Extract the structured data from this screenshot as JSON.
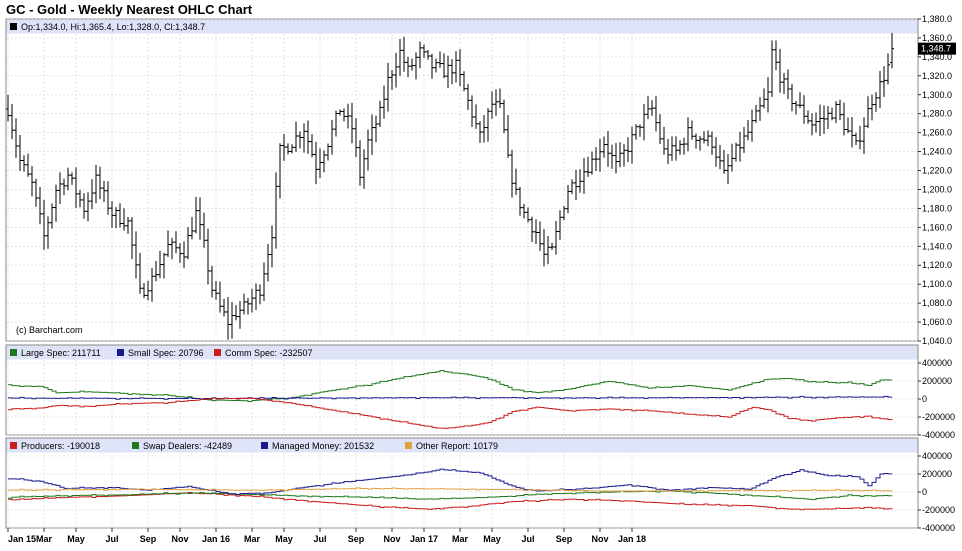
{
  "title": "GC - Gold - Weekly Nearest OHLC Chart",
  "colors": {
    "legend_band": "#dfe3f7",
    "grid": "#d4d4d4",
    "price_bar": "#000000",
    "large_spec": "#1f7a1f",
    "small_spec": "#1a1a8c",
    "comm_spec": "#c81e1e",
    "producers": "#c81e1e",
    "swap_dealers": "#1f7a1f",
    "managed_money": "#1a1a8c",
    "other_report": "#e0a040",
    "last_price_box": "#000000"
  },
  "chart_data": [
    {
      "type": "ohlc",
      "panel": "price",
      "legend": "Op:1,334.0, Hi:1,365.4, Lo:1,328.0, Cl:1,348.7",
      "watermark": "(c) Barchart.com",
      "last_price_label": "1,348.7",
      "last_price": 1348.7,
      "ylim": [
        1040,
        1380
      ],
      "yticks": [
        "1,380.0",
        "1,360.0",
        "1,340.0",
        "1,320.0",
        "1,300.0",
        "1,280.0",
        "1,260.0",
        "1,240.0",
        "1,220.0",
        "1,200.0",
        "1,180.0",
        "1,160.0",
        "1,140.0",
        "1,120.0",
        "1,100.0",
        "1,080.0",
        "1,060.0",
        "1,040.0"
      ],
      "ytick_values": [
        1380,
        1360,
        1340,
        1320,
        1300,
        1280,
        1260,
        1240,
        1220,
        1200,
        1180,
        1160,
        1140,
        1120,
        1100,
        1080,
        1060,
        1040
      ],
      "close_anchors": [
        [
          0,
          1285
        ],
        [
          3,
          1230
        ],
        [
          6,
          1205
        ],
        [
          9,
          1150
        ],
        [
          12,
          1200
        ],
        [
          15,
          1215
        ],
        [
          19,
          1180
        ],
        [
          22,
          1210
        ],
        [
          26,
          1175
        ],
        [
          30,
          1165
        ],
        [
          33,
          1090
        ],
        [
          36,
          1105
        ],
        [
          40,
          1140
        ],
        [
          44,
          1135
        ],
        [
          47,
          1175
        ],
        [
          49,
          1140
        ],
        [
          51,
          1095
        ],
        [
          53,
          1075
        ],
        [
          55,
          1060
        ],
        [
          57,
          1070
        ],
        [
          59,
          1075
        ],
        [
          61,
          1085
        ],
        [
          63,
          1095
        ],
        [
          66,
          1155
        ],
        [
          68,
          1240
        ],
        [
          71,
          1250
        ],
        [
          74,
          1265
        ],
        [
          77,
          1225
        ],
        [
          80,
          1250
        ],
        [
          83,
          1285
        ],
        [
          86,
          1265
        ],
        [
          88,
          1215
        ],
        [
          90,
          1250
        ],
        [
          93,
          1280
        ],
        [
          95,
          1315
        ],
        [
          97,
          1335
        ],
        [
          98,
          1345
        ],
        [
          100,
          1325
        ],
        [
          103,
          1345
        ],
        [
          106,
          1330
        ],
        [
          109,
          1325
        ],
        [
          112,
          1330
        ],
        [
          114,
          1305
        ],
        [
          116,
          1280
        ],
        [
          118,
          1255
        ],
        [
          121,
          1290
        ],
        [
          123,
          1285
        ],
        [
          124,
          1260
        ],
        [
          125,
          1230
        ],
        [
          127,
          1195
        ],
        [
          129,
          1175
        ],
        [
          132,
          1155
        ],
        [
          134,
          1130
        ],
        [
          136,
          1135
        ],
        [
          138,
          1170
        ],
        [
          140,
          1200
        ],
        [
          143,
          1215
        ],
        [
          146,
          1230
        ],
        [
          149,
          1250
        ],
        [
          152,
          1225
        ],
        [
          155,
          1245
        ],
        [
          158,
          1270
        ],
        [
          161,
          1285
        ],
        [
          164,
          1240
        ],
        [
          167,
          1240
        ],
        [
          170,
          1260
        ],
        [
          173,
          1255
        ],
        [
          176,
          1250
        ],
        [
          179,
          1215
        ],
        [
          182,
          1240
        ],
        [
          185,
          1260
        ],
        [
          188,
          1285
        ],
        [
          190,
          1300
        ],
        [
          191,
          1345
        ],
        [
          193,
          1320
        ],
        [
          195,
          1300
        ],
        [
          198,
          1285
        ],
        [
          201,
          1270
        ],
        [
          204,
          1275
        ],
        [
          207,
          1285
        ],
        [
          210,
          1260
        ],
        [
          212,
          1245
        ],
        [
          214,
          1270
        ],
        [
          216,
          1295
        ],
        [
          218,
          1310
        ],
        [
          220,
          1330
        ],
        [
          221,
          1348.7
        ]
      ],
      "weeks": 222
    },
    {
      "type": "line",
      "panel": "cot_legacy",
      "ylim": [
        -400000,
        400000
      ],
      "yticks": [
        "400000",
        "200000",
        "0",
        "-200000",
        "-400000"
      ],
      "ytick_values": [
        400000,
        200000,
        0,
        -200000,
        -400000
      ],
      "series": [
        {
          "name": "Large Spec",
          "legend_text": "Large Spec: 211711",
          "color_key": "large_spec",
          "latest": 211711,
          "anchors": [
            [
              0,
              150000
            ],
            [
              8,
              140000
            ],
            [
              12,
              70000
            ],
            [
              20,
              80000
            ],
            [
              30,
              60000
            ],
            [
              40,
              40000
            ],
            [
              50,
              -10000
            ],
            [
              60,
              -20000
            ],
            [
              70,
              10000
            ],
            [
              80,
              90000
            ],
            [
              90,
              160000
            ],
            [
              100,
              250000
            ],
            [
              108,
              310000
            ],
            [
              115,
              270000
            ],
            [
              120,
              230000
            ],
            [
              126,
              110000
            ],
            [
              132,
              70000
            ],
            [
              140,
              110000
            ],
            [
              150,
              200000
            ],
            [
              160,
              120000
            ],
            [
              170,
              150000
            ],
            [
              180,
              100000
            ],
            [
              190,
              220000
            ],
            [
              195,
              230000
            ],
            [
              200,
              190000
            ],
            [
              210,
              180000
            ],
            [
              215,
              150000
            ],
            [
              218,
              210000
            ],
            [
              221,
              211711
            ]
          ]
        },
        {
          "name": "Small Spec",
          "legend_text": "Small Spec: 20796",
          "color_key": "small_spec",
          "latest": 20796,
          "anchors": [
            [
              0,
              10000
            ],
            [
              50,
              5000
            ],
            [
              100,
              15000
            ],
            [
              150,
              12000
            ],
            [
              200,
              20000
            ],
            [
              221,
              20796
            ]
          ]
        },
        {
          "name": "Comm Spec",
          "legend_text": "Comm Spec: -232507",
          "color_key": "comm_spec",
          "latest": -232507,
          "anchors": [
            [
              0,
              -110000
            ],
            [
              8,
              -100000
            ],
            [
              12,
              -70000
            ],
            [
              20,
              -80000
            ],
            [
              30,
              -50000
            ],
            [
              40,
              -40000
            ],
            [
              50,
              0
            ],
            [
              60,
              10000
            ],
            [
              70,
              -40000
            ],
            [
              80,
              -120000
            ],
            [
              90,
              -190000
            ],
            [
              100,
              -270000
            ],
            [
              108,
              -330000
            ],
            [
              115,
              -300000
            ],
            [
              120,
              -260000
            ],
            [
              126,
              -140000
            ],
            [
              132,
              -90000
            ],
            [
              140,
              -130000
            ],
            [
              150,
              -110000
            ],
            [
              160,
              -130000
            ],
            [
              170,
              -170000
            ],
            [
              180,
              -200000
            ],
            [
              186,
              -90000
            ],
            [
              190,
              -120000
            ],
            [
              195,
              -210000
            ],
            [
              200,
              -240000
            ],
            [
              210,
              -200000
            ],
            [
              215,
              -190000
            ],
            [
              218,
              -220000
            ],
            [
              221,
              -232507
            ]
          ]
        }
      ]
    },
    {
      "type": "line",
      "panel": "cot_disaggregated",
      "ylim": [
        -400000,
        400000
      ],
      "yticks": [
        "400000",
        "200000",
        "0",
        "-200000",
        "-400000"
      ],
      "ytick_values": [
        400000,
        200000,
        0,
        -200000,
        -400000
      ],
      "series": [
        {
          "name": "Producers",
          "legend_text": "Producers: -190018",
          "color_key": "producers",
          "latest": -190018,
          "anchors": [
            [
              0,
              -90000
            ],
            [
              15,
              -60000
            ],
            [
              30,
              -40000
            ],
            [
              45,
              -10000
            ],
            [
              55,
              -30000
            ],
            [
              65,
              -60000
            ],
            [
              80,
              -120000
            ],
            [
              95,
              -170000
            ],
            [
              105,
              -190000
            ],
            [
              115,
              -160000
            ],
            [
              125,
              -110000
            ],
            [
              140,
              -80000
            ],
            [
              155,
              -100000
            ],
            [
              170,
              -140000
            ],
            [
              185,
              -150000
            ],
            [
              195,
              -190000
            ],
            [
              205,
              -190000
            ],
            [
              215,
              -170000
            ],
            [
              221,
              -190018
            ]
          ]
        },
        {
          "name": "Swap Dealers",
          "legend_text": "Swap Dealers: -42489",
          "color_key": "swap_dealers",
          "latest": -42489,
          "anchors": [
            [
              0,
              -60000
            ],
            [
              15,
              -40000
            ],
            [
              30,
              -30000
            ],
            [
              45,
              -10000
            ],
            [
              55,
              -20000
            ],
            [
              70,
              -40000
            ],
            [
              90,
              -60000
            ],
            [
              105,
              -80000
            ],
            [
              120,
              -60000
            ],
            [
              135,
              -20000
            ],
            [
              150,
              0
            ],
            [
              165,
              10000
            ],
            [
              180,
              -20000
            ],
            [
              190,
              -50000
            ],
            [
              200,
              -80000
            ],
            [
              210,
              -40000
            ],
            [
              221,
              -42489
            ]
          ]
        },
        {
          "name": "Managed Money",
          "legend_text": "Managed Money: 201532",
          "color_key": "managed_money",
          "latest": 201532,
          "anchors": [
            [
              0,
              150000
            ],
            [
              8,
              120000
            ],
            [
              14,
              40000
            ],
            [
              25,
              50000
            ],
            [
              35,
              20000
            ],
            [
              45,
              60000
            ],
            [
              55,
              -20000
            ],
            [
              65,
              -10000
            ],
            [
              75,
              60000
            ],
            [
              90,
              140000
            ],
            [
              100,
              190000
            ],
            [
              108,
              250000
            ],
            [
              118,
              210000
            ],
            [
              126,
              60000
            ],
            [
              132,
              10000
            ],
            [
              145,
              40000
            ],
            [
              155,
              80000
            ],
            [
              165,
              20000
            ],
            [
              175,
              50000
            ],
            [
              185,
              30000
            ],
            [
              192,
              170000
            ],
            [
              198,
              240000
            ],
            [
              205,
              180000
            ],
            [
              212,
              170000
            ],
            [
              215,
              70000
            ],
            [
              218,
              200000
            ],
            [
              221,
              201532
            ]
          ]
        },
        {
          "name": "Other Report",
          "legend_text": "Other Report: 10179",
          "color_key": "other_report",
          "latest": 10179,
          "anchors": [
            [
              0,
              20000
            ],
            [
              30,
              30000
            ],
            [
              60,
              20000
            ],
            [
              90,
              40000
            ],
            [
              120,
              30000
            ],
            [
              150,
              10000
            ],
            [
              180,
              15000
            ],
            [
              210,
              20000
            ],
            [
              221,
              10179
            ]
          ]
        }
      ]
    }
  ],
  "x_axis": {
    "labels": [
      "Jan 15",
      "Mar",
      "May",
      "Jul",
      "Sep",
      "Nov",
      "Jan 16",
      "Mar",
      "May",
      "Jul",
      "Sep",
      "Nov",
      "Jan 17",
      "Mar",
      "May",
      "Jul",
      "Sep",
      "Nov",
      "Jan 18"
    ],
    "label_weeks": [
      0,
      9,
      17,
      26,
      35,
      43,
      52,
      61,
      69,
      78,
      87,
      96,
      104,
      113,
      121,
      130,
      139,
      148,
      156
    ]
  }
}
